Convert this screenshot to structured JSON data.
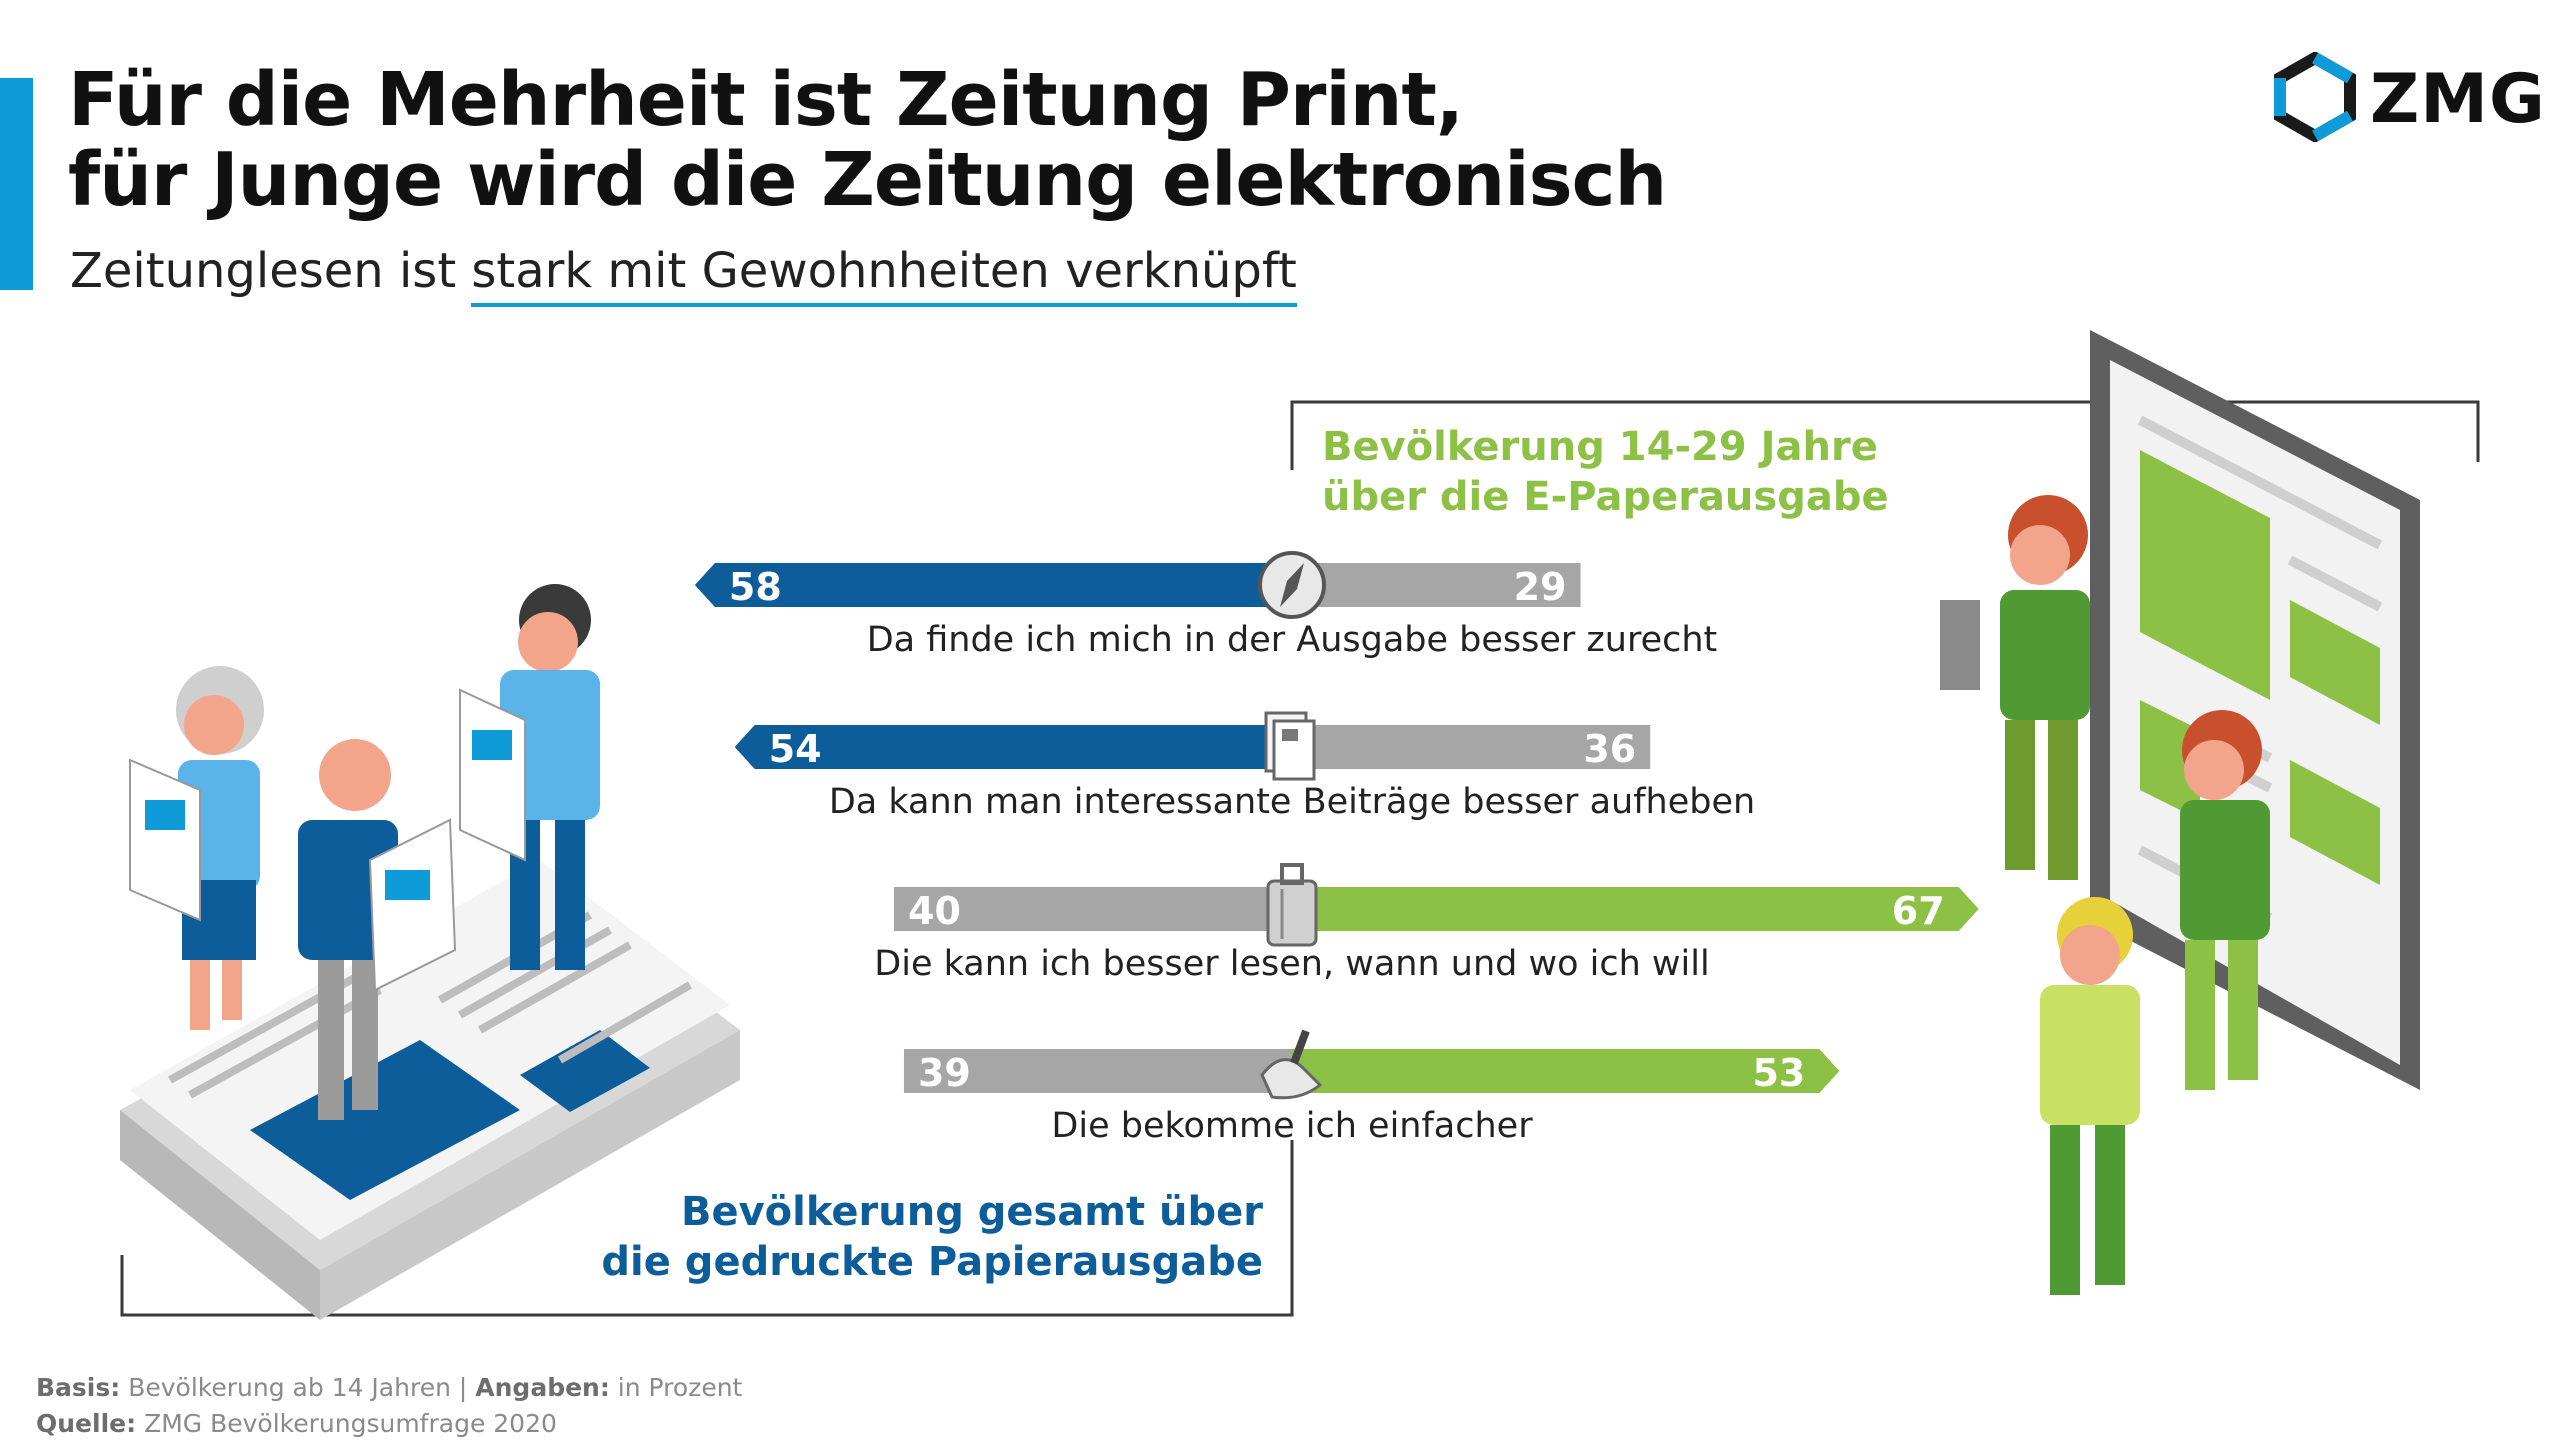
{
  "title": {
    "line1": "Für die Mehrheit ist Zeitung Print,",
    "line2": "für Junge wird die Zeitung elektronisch"
  },
  "subtitle": {
    "part1": "Zeitunglesen ist ",
    "part2": "stark mit Gewohnheiten verknüpft"
  },
  "logo": {
    "text": "ZMG"
  },
  "colors": {
    "accent_blue": "#0e9bd7",
    "print_blue": "#0d5d9a",
    "epaper_green": "#8dc145",
    "gray": "#a6a6a6"
  },
  "chart_data": {
    "type": "bar",
    "categories": [
      "Da finde ich mich in der Ausgabe besser zurecht",
      "Da kann man interessante Beiträge besser aufheben",
      "Die kann ich besser lesen, wann und wo ich will",
      "Die bekomme ich einfacher"
    ],
    "series": [
      {
        "name": "Bevölkerung gesamt über die gedruckte Papierausgabe",
        "values": [
          58,
          54,
          40,
          39
        ]
      },
      {
        "name": "Bevölkerung 14-29 Jahre über die E-Paperausgabe",
        "values": [
          29,
          36,
          67,
          53
        ]
      }
    ],
    "highlight": [
      "print",
      "print",
      "epaper",
      "epaper"
    ],
    "icons": [
      "compass-icon",
      "newspaper-stack-icon",
      "luggage-icon",
      "hand-icon"
    ]
  },
  "legend": {
    "print_line1": "Bevölkerung gesamt über",
    "print_line2": "die gedruckte Papierausgabe",
    "epaper_line1": "Bevölkerung 14-29 Jahre",
    "epaper_line2": "über die E-Paperausgabe"
  },
  "footnote": {
    "basis_label": "Basis:",
    "basis_value": "Bevölkerung ab 14 Jahren",
    "separator": "|",
    "angaben_label": "Angaben:",
    "angaben_value": "in Prozent",
    "quelle_label": "Quelle:",
    "quelle_value": "ZMG Bevölkerungsumfrage 2020"
  }
}
